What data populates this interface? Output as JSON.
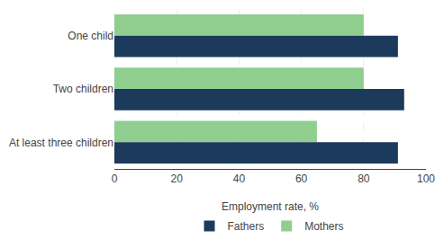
{
  "chart_data": {
    "type": "bar",
    "orientation": "horizontal",
    "categories": [
      "One child",
      "Two children",
      "At least three children"
    ],
    "series": [
      {
        "name": "Fathers",
        "color": "#1b3a5c",
        "values": [
          91,
          93,
          91
        ]
      },
      {
        "name": "Mothers",
        "color": "#8fce8f",
        "values": [
          80,
          80,
          65
        ]
      }
    ],
    "xlabel": "Employment rate, %",
    "xlim": [
      0,
      100
    ],
    "xticks": [
      0,
      20,
      40,
      60,
      80,
      100
    ],
    "grid": true,
    "legend": "bottom"
  }
}
